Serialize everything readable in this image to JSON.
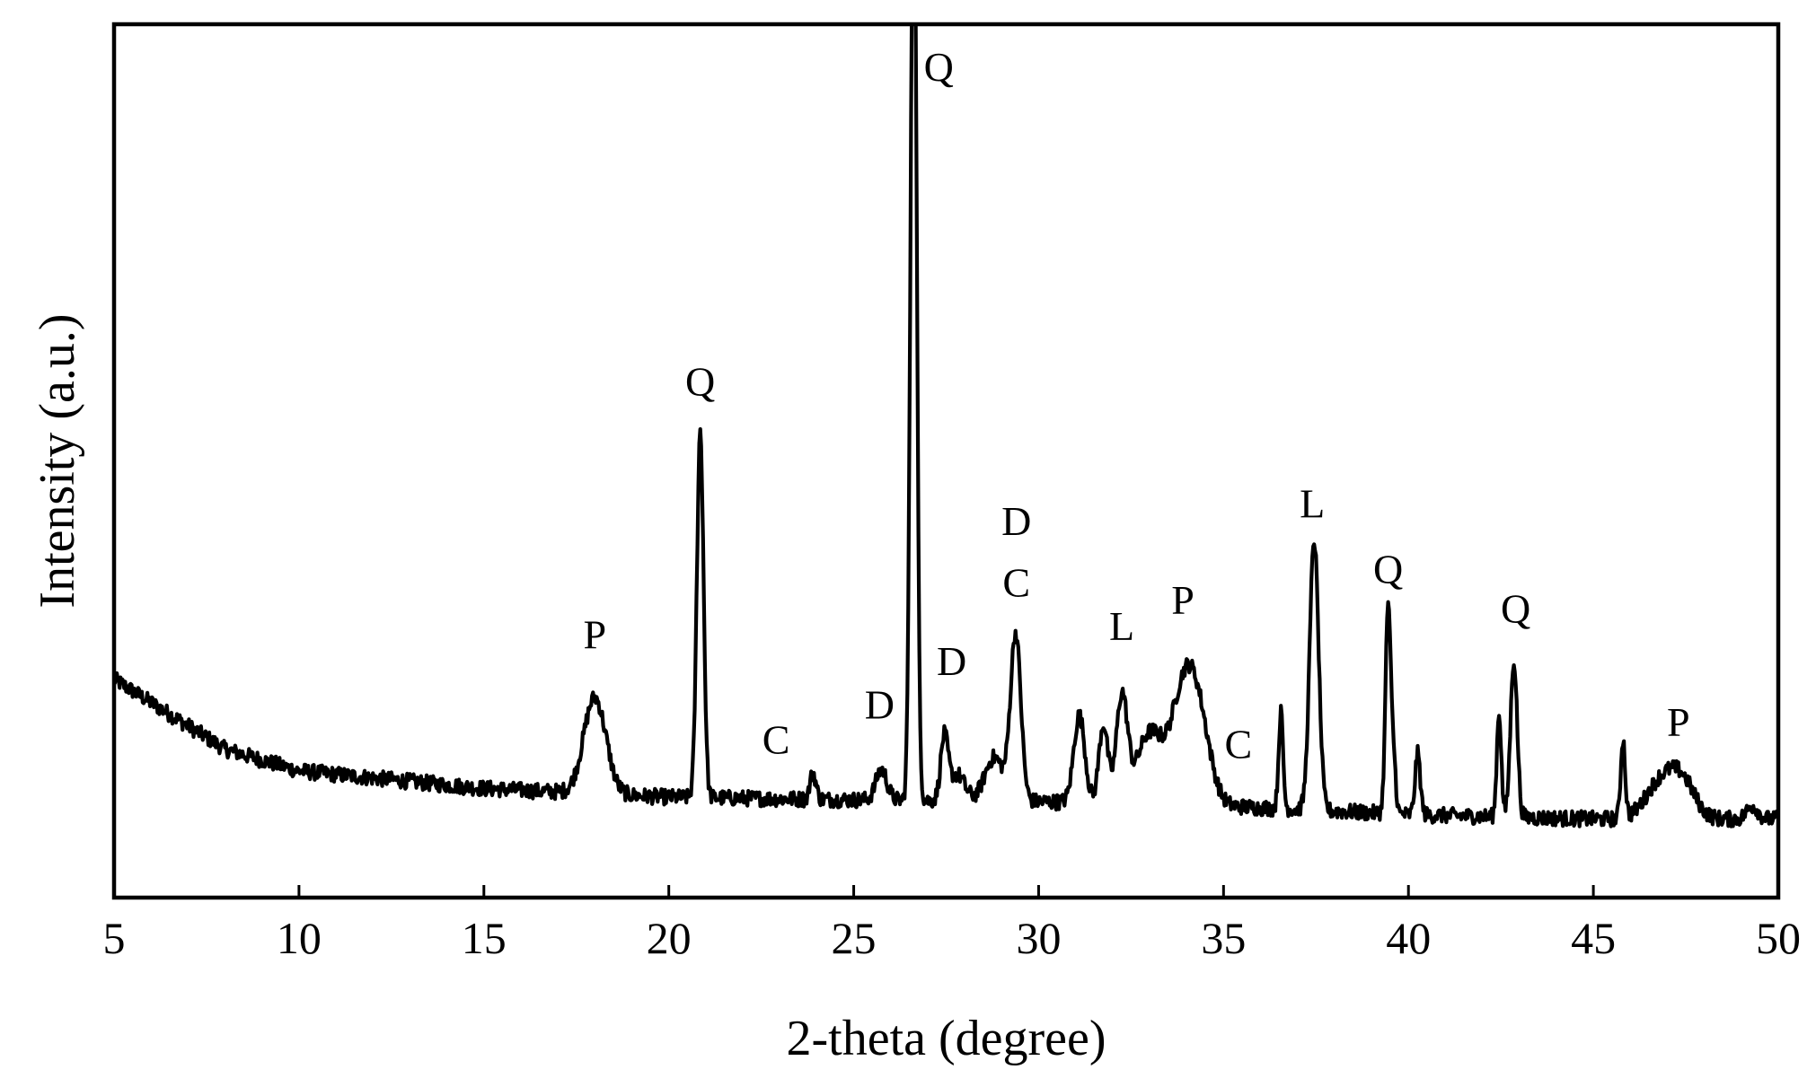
{
  "chart_data": {
    "type": "line",
    "title": "",
    "xlabel": "2-theta (degree)",
    "ylabel": "Intensity (a.u.)",
    "xlim": [
      5,
      50
    ],
    "ylim": [
      0,
      100
    ],
    "grid": false,
    "legend": "none",
    "line_color": "#000000",
    "x_ticks": [
      5,
      10,
      15,
      20,
      25,
      30,
      35,
      40,
      45,
      50
    ],
    "x_tick_labels": [
      "5",
      "10",
      "15",
      "20",
      "25",
      "30",
      "35",
      "40",
      "45",
      "50"
    ],
    "y_ticks_shown": false,
    "series": [
      {
        "peaks": [
          {
            "x": 18.0,
            "h": 11,
            "w": 0.3
          },
          {
            "x": 20.85,
            "h": 42,
            "w": 0.09
          },
          {
            "x": 23.9,
            "h": 3,
            "w": 0.08
          },
          {
            "x": 25.75,
            "h": 3.5,
            "w": 0.15
          },
          {
            "x": 26.62,
            "h": 115,
            "w": 0.08
          },
          {
            "x": 27.45,
            "h": 7,
            "w": 0.1
          },
          {
            "x": 27.8,
            "h": 3,
            "w": 0.2
          },
          {
            "x": 28.8,
            "h": 5,
            "w": 0.25
          },
          {
            "x": 29.38,
            "h": 19,
            "w": 0.14
          },
          {
            "x": 31.1,
            "h": 10,
            "w": 0.15
          },
          {
            "x": 31.75,
            "h": 9,
            "w": 0.12
          },
          {
            "x": 32.25,
            "h": 12,
            "w": 0.15
          },
          {
            "x": 33.0,
            "h": 8,
            "w": 0.35
          },
          {
            "x": 33.95,
            "h": 13.5,
            "w": 0.35
          },
          {
            "x": 34.4,
            "h": 6,
            "w": 0.3
          },
          {
            "x": 36.55,
            "h": 11,
            "w": 0.06
          },
          {
            "x": 37.45,
            "h": 31,
            "w": 0.12
          },
          {
            "x": 39.45,
            "h": 24,
            "w": 0.07
          },
          {
            "x": 39.6,
            "h": 6,
            "w": 0.06
          },
          {
            "x": 40.25,
            "h": 7,
            "w": 0.07
          },
          {
            "x": 42.45,
            "h": 12,
            "w": 0.06
          },
          {
            "x": 42.85,
            "h": 18,
            "w": 0.09
          },
          {
            "x": 45.8,
            "h": 9,
            "w": 0.06
          },
          {
            "x": 46.8,
            "h": 4,
            "w": 0.4
          },
          {
            "x": 47.4,
            "h": 4,
            "w": 0.35
          },
          {
            "x": 49.3,
            "h": 1.5,
            "w": 0.15
          }
        ],
        "background": [
          {
            "x": 5,
            "y": 25
          },
          {
            "x": 8,
            "y": 17
          },
          {
            "x": 10,
            "y": 14.5
          },
          {
            "x": 15,
            "y": 12.5
          },
          {
            "x": 20,
            "y": 11.5
          },
          {
            "x": 25,
            "y": 11.2
          },
          {
            "x": 30,
            "y": 11.0
          },
          {
            "x": 35,
            "y": 10.5
          },
          {
            "x": 40,
            "y": 9.5
          },
          {
            "x": 45,
            "y": 9.0
          },
          {
            "x": 50,
            "y": 9.0
          }
        ]
      }
    ],
    "annotations": [
      {
        "text": "P",
        "x": 18.0,
        "y": 28.5
      },
      {
        "text": "Q",
        "x": 20.85,
        "y": 57.5
      },
      {
        "text": "C",
        "x": 22.9,
        "y": 16.5
      },
      {
        "text": "D",
        "x": 25.7,
        "y": 20.5
      },
      {
        "text": "Q",
        "x": 27.3,
        "y": 93.5
      },
      {
        "text": "D",
        "x": 27.65,
        "y": 25.5
      },
      {
        "text": "D",
        "x": 29.4,
        "y": 41.5
      },
      {
        "text": "C",
        "x": 29.4,
        "y": 34.5
      },
      {
        "text": "L",
        "x": 32.25,
        "y": 29.5
      },
      {
        "text": "P",
        "x": 33.9,
        "y": 32.5
      },
      {
        "text": "C",
        "x": 35.4,
        "y": 16.0
      },
      {
        "text": "L",
        "x": 37.4,
        "y": 43.5
      },
      {
        "text": "Q",
        "x": 39.45,
        "y": 36.0
      },
      {
        "text": "Q",
        "x": 42.9,
        "y": 31.5
      },
      {
        "text": "P",
        "x": 47.3,
        "y": 18.5
      }
    ]
  }
}
